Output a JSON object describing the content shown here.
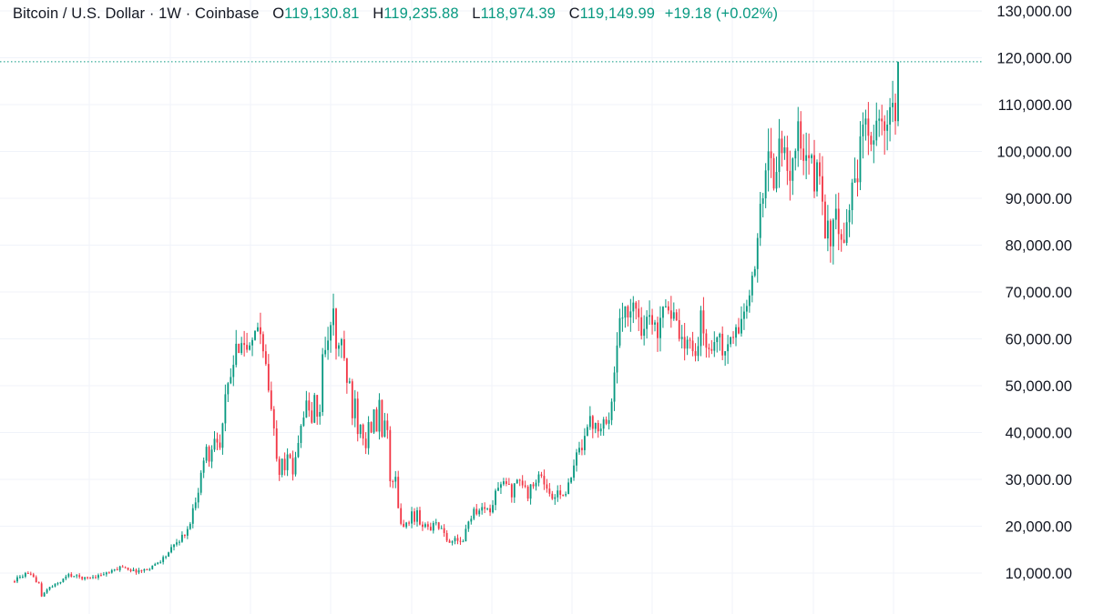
{
  "legend": {
    "symbol": "Bitcoin / U.S. Dollar · 1W · Coinbase",
    "o_label": "O",
    "o_value": "119,130.81",
    "h_label": "H",
    "h_value": "119,235.88",
    "l_label": "L",
    "l_value": "118,974.39",
    "c_label": "C",
    "c_value": "119,149.99",
    "change": "+19.18 (+0.02%)"
  },
  "colors": {
    "up": "#089981",
    "down": "#f23645",
    "grid": "#f0f3fa",
    "text": "#131722",
    "price_line": "#089981"
  },
  "chart_data": {
    "type": "candlestick",
    "title": "Bitcoin / U.S. Dollar · 1W · Coinbase",
    "interval": "1W",
    "grid": true,
    "legend": "top-left",
    "y_axis": {
      "position": "right",
      "range": [
        0,
        130000
      ],
      "ticks": [
        {
          "value": 10000,
          "label": "10,000.00"
        },
        {
          "value": 20000,
          "label": "20,000.00"
        },
        {
          "value": 30000,
          "label": "30,000.00"
        },
        {
          "value": 40000,
          "label": "40,000.00"
        },
        {
          "value": 50000,
          "label": "50,000.00"
        },
        {
          "value": 60000,
          "label": "60,000.00"
        },
        {
          "value": 70000,
          "label": "70,000.00"
        },
        {
          "value": 80000,
          "label": "80,000.00"
        },
        {
          "value": 90000,
          "label": "90,000.00"
        },
        {
          "value": 100000,
          "label": "100,000.00"
        },
        {
          "value": 110000,
          "label": "110,000.00"
        },
        {
          "value": 120000,
          "label": "120,000.00"
        },
        {
          "value": 130000,
          "label": "130,000.00"
        }
      ]
    },
    "last_price": 119149.99,
    "price_path": [
      [
        0,
        8500
      ],
      [
        4,
        9800
      ],
      [
        6,
        9400
      ],
      [
        9,
        7800
      ],
      [
        10,
        4900
      ],
      [
        12,
        6600
      ],
      [
        16,
        7800
      ],
      [
        20,
        9600
      ],
      [
        26,
        8900
      ],
      [
        30,
        9300
      ],
      [
        36,
        10300
      ],
      [
        40,
        11500
      ],
      [
        44,
        10400
      ],
      [
        48,
        10600
      ],
      [
        52,
        11800
      ],
      [
        56,
        13700
      ],
      [
        60,
        16500
      ],
      [
        64,
        19000
      ],
      [
        66,
        23500
      ],
      [
        68,
        28000
      ],
      [
        69,
        31000
      ],
      [
        71,
        37000
      ],
      [
        72,
        34000
      ],
      [
        74,
        40000
      ],
      [
        76,
        36500
      ],
      [
        78,
        47000
      ],
      [
        80,
        52000
      ],
      [
        82,
        57000
      ],
      [
        84,
        61000
      ],
      [
        86,
        57000
      ],
      [
        88,
        58000
      ],
      [
        90,
        63000
      ],
      [
        92,
        59000
      ],
      [
        94,
        49000
      ],
      [
        96,
        40000
      ],
      [
        97,
        35500
      ],
      [
        98,
        32000
      ],
      [
        99,
        35000
      ],
      [
        100,
        33000
      ],
      [
        101,
        36000
      ],
      [
        102,
        33500
      ],
      [
        103,
        31000
      ],
      [
        104,
        35500
      ],
      [
        106,
        42000
      ],
      [
        108,
        46000
      ],
      [
        110,
        42500
      ],
      [
        111,
        47000
      ],
      [
        112,
        43000
      ],
      [
        113,
        45000
      ],
      [
        114,
        56000
      ],
      [
        116,
        61000
      ],
      [
        117,
        62500
      ],
      [
        118,
        65000
      ],
      [
        119,
        58000
      ],
      [
        120,
        57500
      ],
      [
        121,
        60500
      ],
      [
        122,
        56000
      ],
      [
        123,
        49000
      ],
      [
        124,
        50500
      ],
      [
        125,
        44000
      ],
      [
        126,
        47000
      ],
      [
        127,
        41000
      ],
      [
        128,
        42500
      ],
      [
        130,
        37500
      ],
      [
        131,
        43500
      ],
      [
        132,
        39000
      ],
      [
        133,
        44000
      ],
      [
        134,
        40000
      ],
      [
        135,
        46500
      ],
      [
        136,
        38000
      ],
      [
        137,
        43000
      ],
      [
        138,
        39500
      ],
      [
        139,
        30500
      ],
      [
        140,
        29200
      ],
      [
        141,
        30000
      ],
      [
        142,
        23500
      ],
      [
        143,
        20500
      ],
      [
        144,
        19500
      ],
      [
        145,
        21500
      ],
      [
        146,
        20000
      ],
      [
        147,
        23000
      ],
      [
        148,
        21000
      ],
      [
        149,
        23500
      ],
      [
        150,
        19800
      ],
      [
        152,
        20200
      ],
      [
        154,
        19500
      ],
      [
        156,
        20800
      ],
      [
        158,
        19200
      ],
      [
        160,
        16800
      ],
      [
        162,
        17200
      ],
      [
        164,
        16600
      ],
      [
        166,
        17000
      ],
      [
        168,
        21000
      ],
      [
        170,
        23500
      ],
      [
        172,
        23000
      ],
      [
        174,
        24500
      ],
      [
        176,
        22500
      ],
      [
        178,
        27500
      ],
      [
        180,
        28500
      ],
      [
        182,
        29500
      ],
      [
        184,
        27000
      ],
      [
        186,
        30500
      ],
      [
        188,
        29000
      ],
      [
        190,
        26500
      ],
      [
        192,
        29500
      ],
      [
        194,
        31000
      ],
      [
        196,
        29500
      ],
      [
        198,
        26500
      ],
      [
        200,
        26000
      ],
      [
        202,
        27500
      ],
      [
        204,
        27000
      ],
      [
        206,
        30000
      ],
      [
        208,
        35000
      ],
      [
        210,
        37500
      ],
      [
        212,
        42500
      ],
      [
        214,
        42000
      ],
      [
        216,
        41500
      ],
      [
        218,
        43000
      ],
      [
        220,
        42000
      ],
      [
        221,
        48000
      ],
      [
        222,
        52000
      ],
      [
        224,
        62500
      ],
      [
        226,
        68000
      ],
      [
        228,
        65500
      ],
      [
        230,
        67000
      ],
      [
        232,
        62500
      ],
      [
        234,
        65000
      ],
      [
        236,
        63000
      ],
      [
        238,
        61500
      ],
      [
        239,
        66000
      ],
      [
        240,
        68500
      ],
      [
        242,
        67000
      ],
      [
        244,
        64000
      ],
      [
        246,
        60500
      ],
      [
        248,
        56500
      ],
      [
        250,
        61500
      ],
      [
        252,
        56000
      ],
      [
        254,
        64000
      ],
      [
        256,
        58500
      ],
      [
        258,
        57500
      ],
      [
        260,
        62000
      ],
      [
        262,
        56500
      ],
      [
        264,
        58500
      ],
      [
        266,
        60500
      ],
      [
        268,
        62000
      ],
      [
        270,
        66000
      ],
      [
        272,
        68500
      ],
      [
        274,
        74000
      ],
      [
        276,
        90000
      ],
      [
        278,
        96500
      ],
      [
        280,
        98000
      ],
      [
        281,
        94000
      ],
      [
        282,
        98500
      ],
      [
        284,
        102000
      ],
      [
        286,
        93500
      ],
      [
        288,
        99000
      ],
      [
        290,
        104000
      ],
      [
        292,
        96500
      ],
      [
        294,
        98000
      ],
      [
        296,
        94500
      ],
      [
        298,
        96000
      ],
      [
        300,
        84000
      ],
      [
        302,
        82000
      ],
      [
        304,
        85000
      ],
      [
        306,
        80500
      ],
      [
        307,
        78000
      ],
      [
        308,
        83000
      ],
      [
        310,
        94000
      ],
      [
        312,
        96500
      ],
      [
        314,
        103500
      ],
      [
        316,
        106000
      ],
      [
        318,
        104000
      ],
      [
        320,
        105500
      ],
      [
        322,
        102500
      ],
      [
        324,
        108500
      ],
      [
        326,
        106500
      ],
      [
        327,
        119149.99
      ]
    ]
  }
}
